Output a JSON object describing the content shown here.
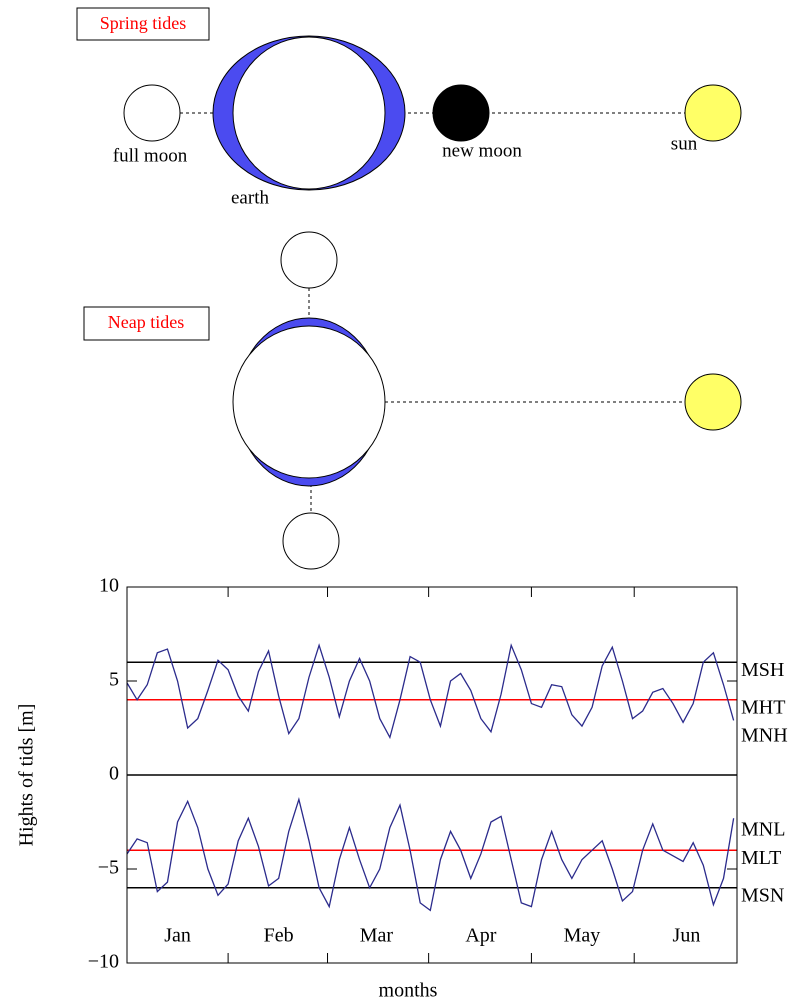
{
  "diagram": {
    "spring": {
      "title": "Spring tides",
      "full_moon": "full moon",
      "earth": "earth",
      "new_moon": "new moon",
      "sun": "sun"
    },
    "neap": {
      "title": "Neap tides"
    }
  },
  "chart_data": {
    "type": "line",
    "x_label": "months",
    "y_label": "Hights of tids [m]",
    "xlim": [
      0,
      181
    ],
    "xticks": [
      {
        "value": 15,
        "label": "Jan"
      },
      {
        "value": 45,
        "label": "Feb"
      },
      {
        "value": 74,
        "label": "Mar"
      },
      {
        "value": 105,
        "label": "Apr"
      },
      {
        "value": 135,
        "label": "May"
      },
      {
        "value": 166,
        "label": "Jun"
      }
    ],
    "ylim": [
      -10,
      10
    ],
    "yticks": [
      {
        "value": -10,
        "label": "−10"
      },
      {
        "value": -5,
        "label": "−5"
      },
      0,
      5,
      10
    ],
    "x": [
      0,
      3,
      6,
      9,
      12,
      15,
      18,
      21,
      24,
      27,
      30,
      33,
      36,
      39,
      42,
      45,
      48,
      51,
      54,
      57,
      60,
      63,
      66,
      69,
      72,
      75,
      78,
      81,
      84,
      87,
      90,
      93,
      96,
      99,
      102,
      105,
      108,
      111,
      114,
      117,
      120,
      123,
      126,
      129,
      132,
      135,
      138,
      141,
      144,
      147,
      150,
      153,
      156,
      159,
      162,
      165,
      168,
      171,
      174,
      177,
      180
    ],
    "series": [
      {
        "color": "#2b2b8c",
        "values": [
          4.9,
          4.0,
          4.8,
          6.5,
          6.7,
          5.0,
          2.5,
          3.0,
          4.5,
          6.1,
          5.6,
          4.2,
          3.4,
          5.5,
          6.6,
          4.2,
          2.2,
          3.0,
          5.2,
          6.9,
          5.2,
          3.1,
          5.0,
          6.2,
          5.0,
          3.0,
          2.0,
          4.0,
          6.3,
          6.0,
          4.0,
          2.6,
          5.0,
          5.4,
          4.5,
          3.0,
          2.3,
          4.3,
          6.9,
          5.6,
          3.8,
          3.6,
          4.8,
          4.7,
          3.2,
          2.6,
          3.6,
          5.8,
          6.8,
          5.0,
          3.0,
          3.4,
          4.4,
          4.6,
          3.8,
          2.8,
          3.8,
          6.0,
          6.5,
          4.8,
          2.9
        ]
      },
      {
        "color": "#2b2b8c",
        "values": [
          -4.2,
          -3.4,
          -3.6,
          -6.2,
          -5.7,
          -2.5,
          -1.4,
          -2.8,
          -5.0,
          -6.4,
          -5.8,
          -3.5,
          -2.3,
          -3.8,
          -5.9,
          -5.5,
          -3.0,
          -1.3,
          -3.5,
          -6.0,
          -7.0,
          -4.5,
          -2.8,
          -4.5,
          -6.0,
          -5.0,
          -2.8,
          -1.6,
          -4.0,
          -6.8,
          -7.2,
          -4.5,
          -3.0,
          -4.0,
          -5.5,
          -4.2,
          -2.5,
          -2.2,
          -4.5,
          -6.8,
          -7.0,
          -4.5,
          -3.0,
          -4.5,
          -5.5,
          -4.5,
          -4.0,
          -3.5,
          -5.0,
          -6.7,
          -6.2,
          -4.0,
          -2.6,
          -4.0,
          -4.3,
          -4.6,
          -3.6,
          -4.8,
          -6.9,
          -5.5,
          -2.3
        ]
      }
    ],
    "levels": [
      {
        "label": "MSH",
        "value": 6,
        "color": "#000000"
      },
      {
        "label": "MHT",
        "value": 4,
        "color": "#ff0000"
      },
      {
        "label": "MNH",
        "value": 2.5
      },
      {
        "label": "MNL",
        "value": -2.5
      },
      {
        "label": "MLT",
        "value": -4,
        "color": "#ff0000"
      },
      {
        "label": "MSN",
        "value": -6,
        "color": "#000000"
      }
    ]
  }
}
